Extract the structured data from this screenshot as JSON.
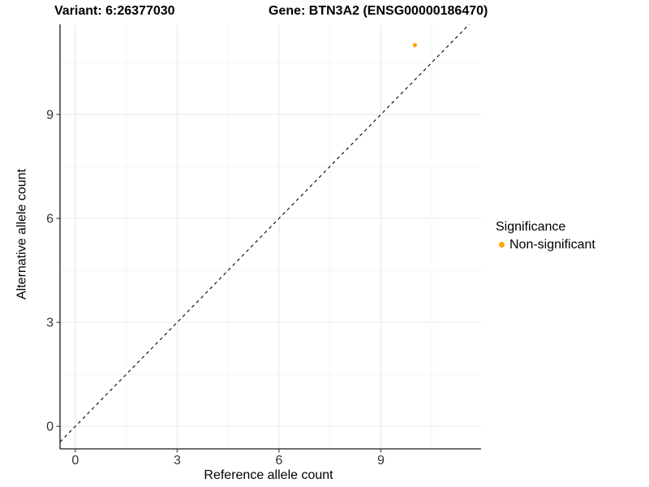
{
  "titles": {
    "variant": "Variant: 6:26377030",
    "gene": "Gene: BTN3A2 (ENSG00000186470)"
  },
  "axes": {
    "x_label": "Reference allele count",
    "y_label": "Alternative allele count"
  },
  "legend": {
    "title": "Significance",
    "items": [
      {
        "label": "Non-significant",
        "color": "#FFA500"
      }
    ]
  },
  "colors": {
    "point": "#FFA500",
    "grid_major": "#EBEBEB",
    "grid_minor": "#F2F2F2",
    "axis_line": "#1A1A1A",
    "tick_mark": "#333333",
    "tick_label": "#333333",
    "reference_line": "#000000"
  },
  "chart_data": {
    "type": "scatter",
    "title_left": "Variant: 6:26377030",
    "title_right": "Gene: BTN3A2 (ENSG00000186470)",
    "xlabel": "Reference allele count",
    "ylabel": "Alternative allele count",
    "xlim": [
      -0.45,
      11.95
    ],
    "ylim": [
      -0.65,
      11.6
    ],
    "xticks": [
      0,
      3,
      6,
      9
    ],
    "yticks": [
      0,
      3,
      6,
      9
    ],
    "xticks_minor": [
      1.5,
      4.5,
      7.5,
      10.5
    ],
    "yticks_minor": [
      1.5,
      4.5,
      7.5,
      10.5
    ],
    "grid": "major+minor",
    "legend_position": "right",
    "legend_title": "Significance",
    "reference_line": {
      "kind": "identity y=x",
      "style": "dashed",
      "color": "#000000"
    },
    "series": [
      {
        "name": "Non-significant",
        "color": "#FFA500",
        "points": [
          {
            "x": 10,
            "y": 11
          }
        ]
      }
    ]
  }
}
